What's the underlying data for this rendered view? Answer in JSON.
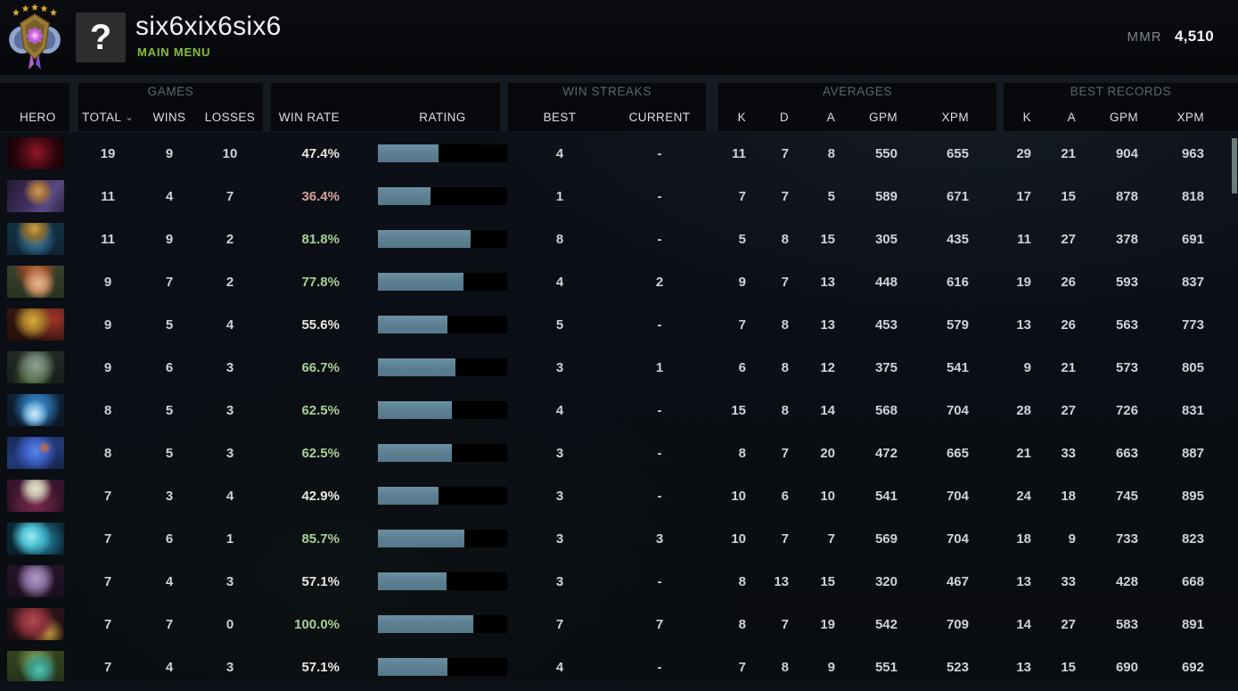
{
  "header": {
    "player_name": "six6xix6six6",
    "nav_label": "MAIN MENU",
    "avatar_placeholder": "?",
    "mmr_label": "MMR",
    "mmr_value": "4,510",
    "rank_medal_icon": "divine-rank-medal-icon"
  },
  "table": {
    "groups": {
      "games": "GAMES",
      "win_streaks": "WIN STREAKS",
      "averages": "AVERAGES",
      "best_records": "BEST RECORDS"
    },
    "columns": {
      "hero": "HERO",
      "total": "TOTAL",
      "wins": "WINS",
      "losses": "LOSSES",
      "win_rate": "WIN RATE",
      "rating": "RATING",
      "best": "BEST",
      "current": "CURRENT",
      "k": "K",
      "d": "D",
      "a": "A",
      "gpm": "GPM",
      "xpm": "XPM",
      "rec_k": "K",
      "rec_a": "A",
      "rec_gpm": "GPM",
      "rec_xpm": "XPM"
    },
    "sort": {
      "column": "TOTAL",
      "direction": "descending"
    },
    "rows": [
      {
        "hero": "shadow-fiend",
        "total": "19",
        "wins": "9",
        "losses": "10",
        "win_rate": "47.4%",
        "win_rate_tone": "neutral",
        "rating_pct": 47,
        "best": "4",
        "current": "-",
        "avg_k": "11",
        "avg_d": "7",
        "avg_a": "8",
        "avg_gpm": "550",
        "avg_xpm": "655",
        "rec_k": "29",
        "rec_a": "21",
        "rec_gpm": "904",
        "rec_xpm": "963"
      },
      {
        "hero": "anti-mage",
        "total": "11",
        "wins": "4",
        "losses": "7",
        "win_rate": "36.4%",
        "win_rate_tone": "low",
        "rating_pct": 41,
        "best": "1",
        "current": "-",
        "avg_k": "7",
        "avg_d": "7",
        "avg_a": "5",
        "avg_gpm": "589",
        "avg_xpm": "671",
        "rec_k": "17",
        "rec_a": "15",
        "rec_gpm": "878",
        "rec_xpm": "818"
      },
      {
        "hero": "naga-siren",
        "total": "11",
        "wins": "9",
        "losses": "2",
        "win_rate": "81.8%",
        "win_rate_tone": "high",
        "rating_pct": 72,
        "best": "8",
        "current": "-",
        "avg_k": "5",
        "avg_d": "8",
        "avg_a": "15",
        "avg_gpm": "305",
        "avg_xpm": "435",
        "rec_k": "11",
        "rec_a": "27",
        "rec_gpm": "378",
        "rec_xpm": "691"
      },
      {
        "hero": "windranger",
        "total": "9",
        "wins": "7",
        "losses": "2",
        "win_rate": "77.8%",
        "win_rate_tone": "high",
        "rating_pct": 66,
        "best": "4",
        "current": "2",
        "avg_k": "9",
        "avg_d": "7",
        "avg_a": "13",
        "avg_gpm": "448",
        "avg_xpm": "616",
        "rec_k": "19",
        "rec_a": "26",
        "rec_gpm": "593",
        "rec_xpm": "837"
      },
      {
        "hero": "legion-commander",
        "total": "9",
        "wins": "5",
        "losses": "4",
        "win_rate": "55.6%",
        "win_rate_tone": "neutral",
        "rating_pct": 54,
        "best": "5",
        "current": "-",
        "avg_k": "7",
        "avg_d": "8",
        "avg_a": "13",
        "avg_gpm": "453",
        "avg_xpm": "579",
        "rec_k": "13",
        "rec_a": "26",
        "rec_gpm": "563",
        "rec_xpm": "773"
      },
      {
        "hero": "tiny",
        "total": "9",
        "wins": "6",
        "losses": "3",
        "win_rate": "66.7%",
        "win_rate_tone": "high",
        "rating_pct": 60,
        "best": "3",
        "current": "1",
        "avg_k": "6",
        "avg_d": "8",
        "avg_a": "12",
        "avg_gpm": "375",
        "avg_xpm": "541",
        "rec_k": "9",
        "rec_a": "21",
        "rec_gpm": "573",
        "rec_xpm": "805"
      },
      {
        "hero": "storm-spirit",
        "total": "8",
        "wins": "5",
        "losses": "3",
        "win_rate": "62.5%",
        "win_rate_tone": "high",
        "rating_pct": 57,
        "best": "4",
        "current": "-",
        "avg_k": "15",
        "avg_d": "8",
        "avg_a": "14",
        "avg_gpm": "568",
        "avg_xpm": "704",
        "rec_k": "28",
        "rec_a": "27",
        "rec_gpm": "726",
        "rec_xpm": "831"
      },
      {
        "hero": "puck",
        "total": "8",
        "wins": "5",
        "losses": "3",
        "win_rate": "62.5%",
        "win_rate_tone": "high",
        "rating_pct": 57,
        "best": "3",
        "current": "-",
        "avg_k": "8",
        "avg_d": "7",
        "avg_a": "20",
        "avg_gpm": "472",
        "avg_xpm": "665",
        "rec_k": "21",
        "rec_a": "33",
        "rec_gpm": "663",
        "rec_xpm": "887"
      },
      {
        "hero": "invoker",
        "total": "7",
        "wins": "3",
        "losses": "4",
        "win_rate": "42.9%",
        "win_rate_tone": "neutral",
        "rating_pct": 47,
        "best": "3",
        "current": "-",
        "avg_k": "10",
        "avg_d": "6",
        "avg_a": "10",
        "avg_gpm": "541",
        "avg_xpm": "704",
        "rec_k": "24",
        "rec_a": "18",
        "rec_gpm": "745",
        "rec_xpm": "895"
      },
      {
        "hero": "morphling",
        "total": "7",
        "wins": "6",
        "losses": "1",
        "win_rate": "85.7%",
        "win_rate_tone": "high",
        "rating_pct": 67,
        "best": "3",
        "current": "3",
        "avg_k": "10",
        "avg_d": "7",
        "avg_a": "7",
        "avg_gpm": "569",
        "avg_xpm": "704",
        "rec_k": "18",
        "rec_a": "9",
        "rec_gpm": "733",
        "rec_xpm": "823"
      },
      {
        "hero": "dazzle",
        "total": "7",
        "wins": "4",
        "losses": "3",
        "win_rate": "57.1%",
        "win_rate_tone": "neutral",
        "rating_pct": 53,
        "best": "3",
        "current": "-",
        "avg_k": "8",
        "avg_d": "13",
        "avg_a": "15",
        "avg_gpm": "320",
        "avg_xpm": "467",
        "rec_k": "13",
        "rec_a": "33",
        "rec_gpm": "428",
        "rec_xpm": "668"
      },
      {
        "hero": "pangolier",
        "total": "7",
        "wins": "7",
        "losses": "0",
        "win_rate": "100.0%",
        "win_rate_tone": "high",
        "rating_pct": 74,
        "best": "7",
        "current": "7",
        "avg_k": "8",
        "avg_d": "7",
        "avg_a": "19",
        "avg_gpm": "542",
        "avg_xpm": "709",
        "rec_k": "14",
        "rec_a": "27",
        "rec_gpm": "583",
        "rec_xpm": "891"
      },
      {
        "hero": "natures-prophet",
        "total": "7",
        "wins": "4",
        "losses": "3",
        "win_rate": "57.1%",
        "win_rate_tone": "neutral",
        "rating_pct": 54,
        "best": "4",
        "current": "-",
        "avg_k": "7",
        "avg_d": "8",
        "avg_a": "9",
        "avg_gpm": "551",
        "avg_xpm": "523",
        "rec_k": "13",
        "rec_a": "15",
        "rec_gpm": "690",
        "rec_xpm": "692"
      }
    ]
  },
  "colors": {
    "accent_green": "#86bd3a",
    "rating_fill": "#5d8193",
    "rating_track": "#000000",
    "win_rate_high": "#a7d096",
    "win_rate_neutral": "#e9e7e3",
    "win_rate_low": "#d6a29d",
    "scrollbar_thumb": "#6e7d79"
  }
}
